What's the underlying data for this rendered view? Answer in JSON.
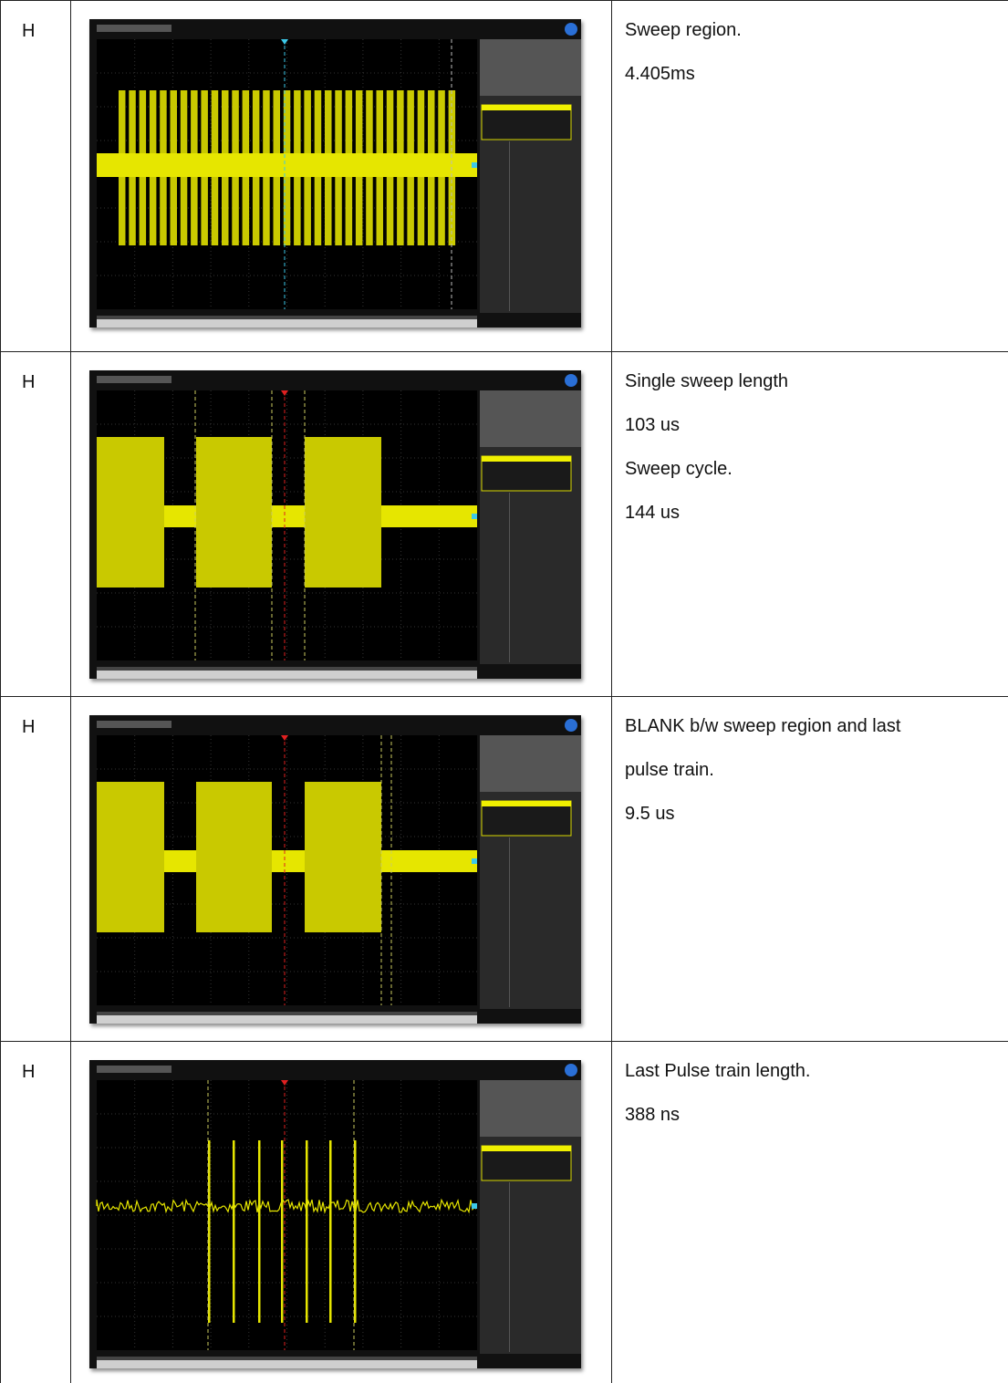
{
  "table": {
    "rows": [
      {
        "label": "H",
        "lines": [
          "Sweep region.",
          "4.405ms"
        ]
      },
      {
        "label": "H",
        "lines": [
          "Single sweep length",
          "103 us",
          "Sweep cycle.",
          "144 us"
        ]
      },
      {
        "label": "H",
        "lines": [
          "BLANK b/w sweep region and last",
          "pulse train.",
          "9.5 us"
        ]
      },
      {
        "label": "H",
        "lines": [
          "Last Pulse train length.",
          "388 ns"
        ]
      }
    ]
  }
}
